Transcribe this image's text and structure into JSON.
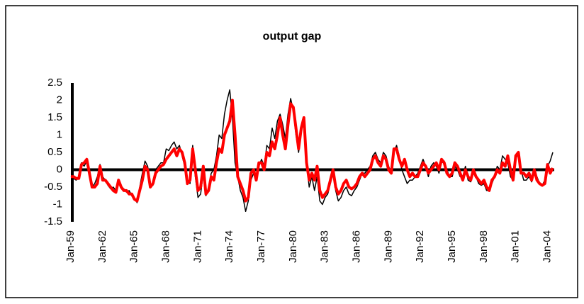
{
  "chart_data": {
    "type": "line",
    "title": "output gap",
    "categories": [
      "Jan-59",
      null,
      null,
      null,
      null,
      null,
      null,
      null,
      null,
      null,
      null,
      null,
      "Jan-62",
      null,
      null,
      null,
      null,
      null,
      null,
      null,
      null,
      null,
      null,
      null,
      "Jan-65",
      null,
      null,
      null,
      null,
      null,
      null,
      null,
      null,
      null,
      null,
      null,
      "Jan-68",
      null,
      null,
      null,
      null,
      null,
      null,
      null,
      null,
      null,
      null,
      null,
      "Jan-71",
      null,
      null,
      null,
      null,
      null,
      null,
      null,
      null,
      null,
      null,
      null,
      "Jan-74",
      null,
      null,
      null,
      null,
      null,
      null,
      null,
      null,
      null,
      null,
      null,
      "Jan-77",
      null,
      null,
      null,
      null,
      null,
      null,
      null,
      null,
      null,
      null,
      null,
      "Jan-80",
      null,
      null,
      null,
      null,
      null,
      null,
      null,
      null,
      null,
      null,
      null,
      "Jan-83",
      null,
      null,
      null,
      null,
      null,
      null,
      null,
      null,
      null,
      null,
      null,
      "Jan-86",
      null,
      null,
      null,
      null,
      null,
      null,
      null,
      null,
      null,
      null,
      null,
      "Jan-89",
      null,
      null,
      null,
      null,
      null,
      null,
      null,
      null,
      null,
      null,
      null,
      "Jan-92",
      null,
      null,
      null,
      null,
      null,
      null,
      null,
      null,
      null,
      null,
      null,
      "Jan-95",
      null,
      null,
      null,
      null,
      null,
      null,
      null,
      null,
      null,
      null,
      null,
      "Jan-98",
      null,
      null,
      null,
      null,
      null,
      null,
      null,
      null,
      null,
      null,
      null,
      "Jan-01",
      null,
      null,
      null,
      null,
      null,
      null,
      null,
      null,
      null,
      null,
      null,
      "Jan-04",
      null,
      null
    ],
    "series": [
      {
        "color": "#000000",
        "width": 1.5,
        "values": [
          -0.2,
          -0.25,
          -0.3,
          -0.2,
          0.2,
          0.1,
          0.25,
          -0.2,
          -0.5,
          -0.4,
          -0.2,
          0.15,
          -0.2,
          -0.3,
          -0.45,
          -0.55,
          -0.5,
          -0.6,
          -0.4,
          -0.5,
          -0.55,
          -0.65,
          -0.6,
          -0.75,
          -0.8,
          -0.95,
          -0.5,
          -0.1,
          0.25,
          0.1,
          -0.4,
          -0.45,
          0.0,
          0.1,
          0.2,
          0.2,
          0.6,
          0.55,
          0.7,
          0.8,
          0.6,
          0.7,
          0.4,
          0.1,
          -0.3,
          -0.4,
          0.7,
          -0.2,
          -0.8,
          -0.7,
          -0.1,
          -0.75,
          -0.5,
          -0.1,
          0.0,
          0.4,
          1.0,
          0.9,
          1.6,
          2.0,
          2.3,
          1.5,
          0.2,
          -0.2,
          -0.6,
          -0.8,
          -1.2,
          -0.9,
          -0.3,
          -0.1,
          -0.2,
          0.1,
          0.3,
          0.1,
          0.7,
          0.6,
          1.2,
          0.9,
          1.4,
          1.6,
          1.3,
          0.9,
          1.6,
          2.05,
          1.7,
          1.0,
          0.5,
          1.1,
          1.4,
          0.2,
          -0.5,
          -0.2,
          -0.6,
          -0.2,
          -0.9,
          -1.0,
          -0.8,
          -0.7,
          -0.4,
          -0.1,
          -0.6,
          -0.9,
          -0.8,
          -0.6,
          -0.5,
          -0.7,
          -0.75,
          -0.6,
          -0.5,
          -0.3,
          -0.1,
          -0.1,
          0.0,
          0.1,
          0.4,
          0.5,
          0.3,
          0.2,
          0.5,
          0.4,
          0.1,
          -0.1,
          0.5,
          0.7,
          0.4,
          0.0,
          -0.2,
          -0.4,
          -0.3,
          -0.3,
          -0.2,
          -0.1,
          0.1,
          0.3,
          0.1,
          -0.2,
          0.1,
          0.2,
          0.1,
          -0.1,
          0.2,
          0.25,
          0.0,
          -0.2,
          -0.2,
          0.1,
          0.0,
          -0.2,
          -0.2,
          0.1,
          -0.3,
          -0.35,
          -0.1,
          -0.2,
          -0.4,
          -0.45,
          -0.4,
          -0.6,
          -0.6,
          -0.4,
          -0.2,
          0.1,
          0.0,
          0.4,
          0.3,
          0.2,
          -0.2,
          -0.3,
          0.3,
          0.5,
          0.0,
          -0.3,
          -0.3,
          -0.2,
          -0.35,
          -0.1,
          -0.2,
          -0.4,
          -0.45,
          -0.3,
          0.1,
          0.25,
          0.5
        ]
      },
      {
        "color": "#ff0000",
        "width": 4,
        "values": [
          -0.2,
          -0.2,
          -0.25,
          -0.25,
          0.15,
          0.2,
          0.3,
          -0.1,
          -0.5,
          -0.5,
          -0.4,
          0.1,
          -0.3,
          -0.3,
          -0.4,
          -0.5,
          -0.6,
          -0.65,
          -0.3,
          -0.5,
          -0.6,
          -0.6,
          -0.7,
          -0.7,
          -0.85,
          -0.9,
          -0.6,
          -0.3,
          0.1,
          0.0,
          -0.5,
          -0.4,
          -0.1,
          0.0,
          0.1,
          0.15,
          0.3,
          0.4,
          0.5,
          0.6,
          0.4,
          0.6,
          0.5,
          0.2,
          -0.4,
          -0.3,
          0.6,
          0.0,
          -0.6,
          -0.5,
          0.1,
          -0.7,
          -0.6,
          -0.2,
          -0.3,
          0.2,
          0.6,
          0.5,
          1.0,
          1.2,
          1.4,
          2.0,
          1.0,
          -0.2,
          -0.4,
          -0.6,
          -0.9,
          -0.8,
          -0.1,
          0.0,
          -0.3,
          0.2,
          0.2,
          0.0,
          0.5,
          0.4,
          0.8,
          0.6,
          1.0,
          1.5,
          1.0,
          0.6,
          1.3,
          1.9,
          1.8,
          1.2,
          0.6,
          1.2,
          1.5,
          0.2,
          -0.3,
          -0.1,
          -0.3,
          0.1,
          -0.6,
          -0.8,
          -0.7,
          -0.6,
          -0.3,
          0.0,
          -0.5,
          -0.7,
          -0.6,
          -0.4,
          -0.3,
          -0.5,
          -0.55,
          -0.5,
          -0.4,
          -0.2,
          -0.1,
          -0.2,
          -0.1,
          0.0,
          0.3,
          0.4,
          0.2,
          0.1,
          0.4,
          0.3,
          0.0,
          -0.1,
          0.6,
          0.6,
          0.3,
          0.1,
          0.3,
          0.0,
          -0.2,
          -0.1,
          -0.2,
          -0.2,
          0.0,
          0.2,
          0.1,
          -0.1,
          0.0,
          0.1,
          0.2,
          0.0,
          0.3,
          0.2,
          -0.1,
          -0.2,
          -0.1,
          0.2,
          0.1,
          -0.1,
          -0.3,
          0.0,
          -0.2,
          -0.3,
          0.0,
          -0.2,
          -0.3,
          -0.4,
          -0.3,
          -0.5,
          -0.6,
          -0.3,
          -0.2,
          0.0,
          -0.1,
          0.2,
          0.1,
          0.4,
          0.0,
          -0.3,
          0.4,
          0.5,
          -0.1,
          -0.1,
          -0.2,
          -0.1,
          -0.3,
          0.0,
          -0.3,
          -0.4,
          -0.45,
          -0.4,
          0.15,
          -0.1,
          0.05
        ]
      }
    ],
    "ylim": [
      -1.5,
      2.5
    ],
    "yticks": [
      -1.5,
      -1,
      -0.5,
      0,
      0.5,
      1,
      1.5,
      2,
      2.5
    ],
    "grid": false
  }
}
